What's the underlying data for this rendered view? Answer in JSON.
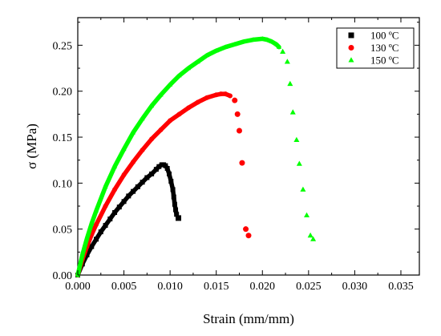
{
  "chart_data": {
    "type": "scatter",
    "title": "",
    "xlabel": "Strain (mm/mm)",
    "ylabel": "σ (MPa)",
    "xlim": [
      0,
      0.037
    ],
    "ylim": [
      0,
      0.28
    ],
    "xticks": [
      0.0,
      0.005,
      0.01,
      0.015,
      0.02,
      0.025,
      0.03,
      0.035
    ],
    "xtick_labels": [
      "0.000",
      "0.005",
      "0.010",
      "0.015",
      "0.020",
      "0.025",
      "0.030",
      "0.035"
    ],
    "yticks": [
      0.0,
      0.05,
      0.1,
      0.15,
      0.2,
      0.25
    ],
    "ytick_labels": [
      "0.00",
      "0.05",
      "0.10",
      "0.15",
      "0.20",
      "0.25"
    ],
    "grid": false,
    "legend_position": "top-right",
    "series": [
      {
        "name": "100 ºC",
        "marker": "square",
        "color": "#000000",
        "dense": {
          "x": [
            0.0,
            0.0005,
            0.001,
            0.0015,
            0.002,
            0.0025,
            0.003,
            0.0035,
            0.004,
            0.0045,
            0.005,
            0.0055,
            0.006,
            0.0065,
            0.007,
            0.0075,
            0.008,
            0.0085,
            0.0088,
            0.0091,
            0.0093,
            0.0095,
            0.0097,
            0.0099,
            0.0101,
            0.0103,
            0.0104,
            0.0105,
            0.0106,
            0.0107
          ],
          "y": [
            0.0,
            0.012,
            0.022,
            0.031,
            0.039,
            0.047,
            0.054,
            0.061,
            0.068,
            0.074,
            0.08,
            0.086,
            0.091,
            0.096,
            0.101,
            0.106,
            0.11,
            0.115,
            0.118,
            0.12,
            0.12,
            0.119,
            0.116,
            0.11,
            0.102,
            0.093,
            0.085,
            0.077,
            0.071,
            0.066
          ]
        },
        "sparse": {
          "x": [
            0.0109
          ],
          "y": [
            0.062
          ]
        }
      },
      {
        "name": "130 ºC",
        "marker": "circle",
        "color": "#ff0000",
        "dense": {
          "x": [
            0.0,
            0.0005,
            0.001,
            0.0015,
            0.002,
            0.003,
            0.004,
            0.005,
            0.006,
            0.007,
            0.008,
            0.009,
            0.01,
            0.011,
            0.012,
            0.013,
            0.014,
            0.015,
            0.0155,
            0.016,
            0.0165
          ],
          "y": [
            0.0,
            0.017,
            0.031,
            0.044,
            0.055,
            0.075,
            0.093,
            0.109,
            0.123,
            0.136,
            0.148,
            0.158,
            0.168,
            0.175,
            0.182,
            0.188,
            0.193,
            0.196,
            0.197,
            0.197,
            0.195
          ]
        },
        "sparse": {
          "x": [
            0.017,
            0.0173,
            0.0175,
            0.0178,
            0.0182,
            0.0185
          ],
          "y": [
            0.19,
            0.175,
            0.157,
            0.122,
            0.05,
            0.043
          ]
        }
      },
      {
        "name": "150 ºC",
        "marker": "triangle",
        "color": "#00ff00",
        "dense": {
          "x": [
            0.0,
            0.0005,
            0.001,
            0.0015,
            0.002,
            0.003,
            0.004,
            0.005,
            0.006,
            0.007,
            0.008,
            0.009,
            0.01,
            0.011,
            0.012,
            0.013,
            0.014,
            0.015,
            0.016,
            0.017,
            0.018,
            0.019,
            0.02,
            0.0205,
            0.021,
            0.0215,
            0.0218
          ],
          "y": [
            0.0,
            0.022,
            0.04,
            0.056,
            0.07,
            0.096,
            0.118,
            0.137,
            0.155,
            0.17,
            0.184,
            0.196,
            0.207,
            0.217,
            0.225,
            0.232,
            0.239,
            0.244,
            0.248,
            0.251,
            0.254,
            0.256,
            0.257,
            0.256,
            0.254,
            0.251,
            0.248
          ]
        },
        "sparse": {
          "x": [
            0.0222,
            0.0227,
            0.023,
            0.0233,
            0.0237,
            0.024,
            0.0244,
            0.0248,
            0.0252,
            0.0255
          ],
          "y": [
            0.243,
            0.232,
            0.208,
            0.177,
            0.147,
            0.121,
            0.093,
            0.065,
            0.043,
            0.039
          ]
        }
      }
    ]
  }
}
